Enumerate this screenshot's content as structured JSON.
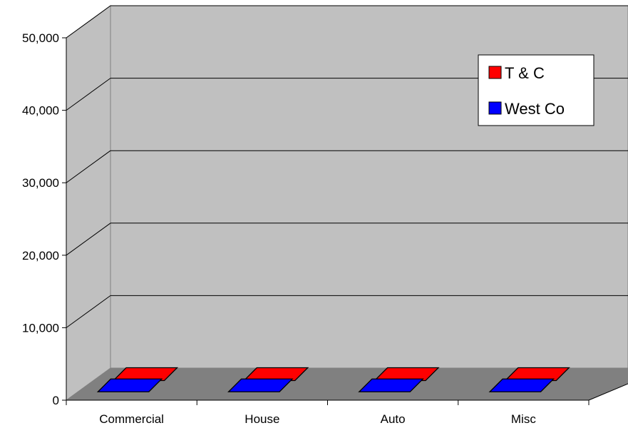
{
  "chart_data": {
    "type": "bar",
    "view": "3d-column",
    "categories": [
      "Commercial",
      "House",
      "Auto",
      "Misc"
    ],
    "series": [
      {
        "name": "T & C",
        "color": "#ff0000",
        "values": [
          0,
          0,
          0,
          0
        ]
      },
      {
        "name": "West Co",
        "color": "#0000ff",
        "values": [
          0,
          0,
          0,
          0
        ]
      }
    ],
    "y_ticks": [
      "0",
      "10,000",
      "20,000",
      "30,000",
      "40,000",
      "50,000"
    ],
    "ylim": [
      0,
      50000
    ],
    "grid": true,
    "legend_position": "top-right",
    "colors": {
      "back_wall": "#c0c0c0",
      "side_wall": "#c0c0c0",
      "floor": "#808080",
      "gridline": "#000000"
    }
  }
}
